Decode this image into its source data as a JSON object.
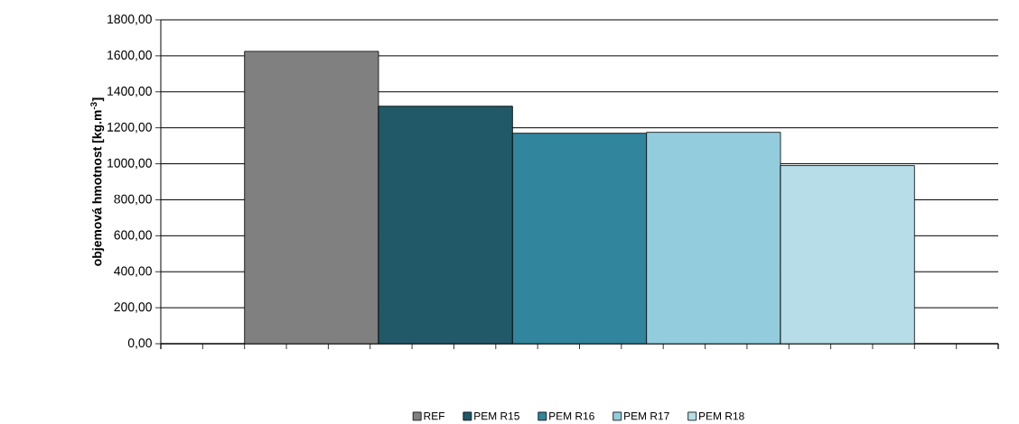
{
  "chart_data": {
    "type": "bar",
    "ylabel": "objemová hmotnost [kg.m$^{-3}$]",
    "categories": [
      null
    ],
    "series": [
      {
        "name": "REF",
        "color": "#808080",
        "values": [
          1625
        ]
      },
      {
        "name": "PEM R15",
        "color": "#215968",
        "values": [
          1320
        ]
      },
      {
        "name": "PEM R16",
        "color": "#31859c",
        "values": [
          1170
        ]
      },
      {
        "name": "PEM R17",
        "color": "#93cddd",
        "values": [
          1175
        ]
      },
      {
        "name": "PEM R18",
        "color": "#b7dee8",
        "values": [
          990
        ]
      }
    ],
    "ylim": [
      0,
      1800
    ],
    "yticks": [
      {
        "value": 0,
        "label": "0,00"
      },
      {
        "value": 200,
        "label": "200,00"
      },
      {
        "value": 400,
        "label": "400,00"
      },
      {
        "value": 600,
        "label": "600,00"
      },
      {
        "value": 800,
        "label": "800,00"
      },
      {
        "value": 1000,
        "label": "1000,00"
      },
      {
        "value": 1200,
        "label": "1200,00"
      },
      {
        "value": 1400,
        "label": "1400,00"
      },
      {
        "value": 1600,
        "label": "1600,00"
      },
      {
        "value": 1800,
        "label": "1800,00"
      }
    ],
    "grid": "y",
    "legend": "bottom"
  }
}
